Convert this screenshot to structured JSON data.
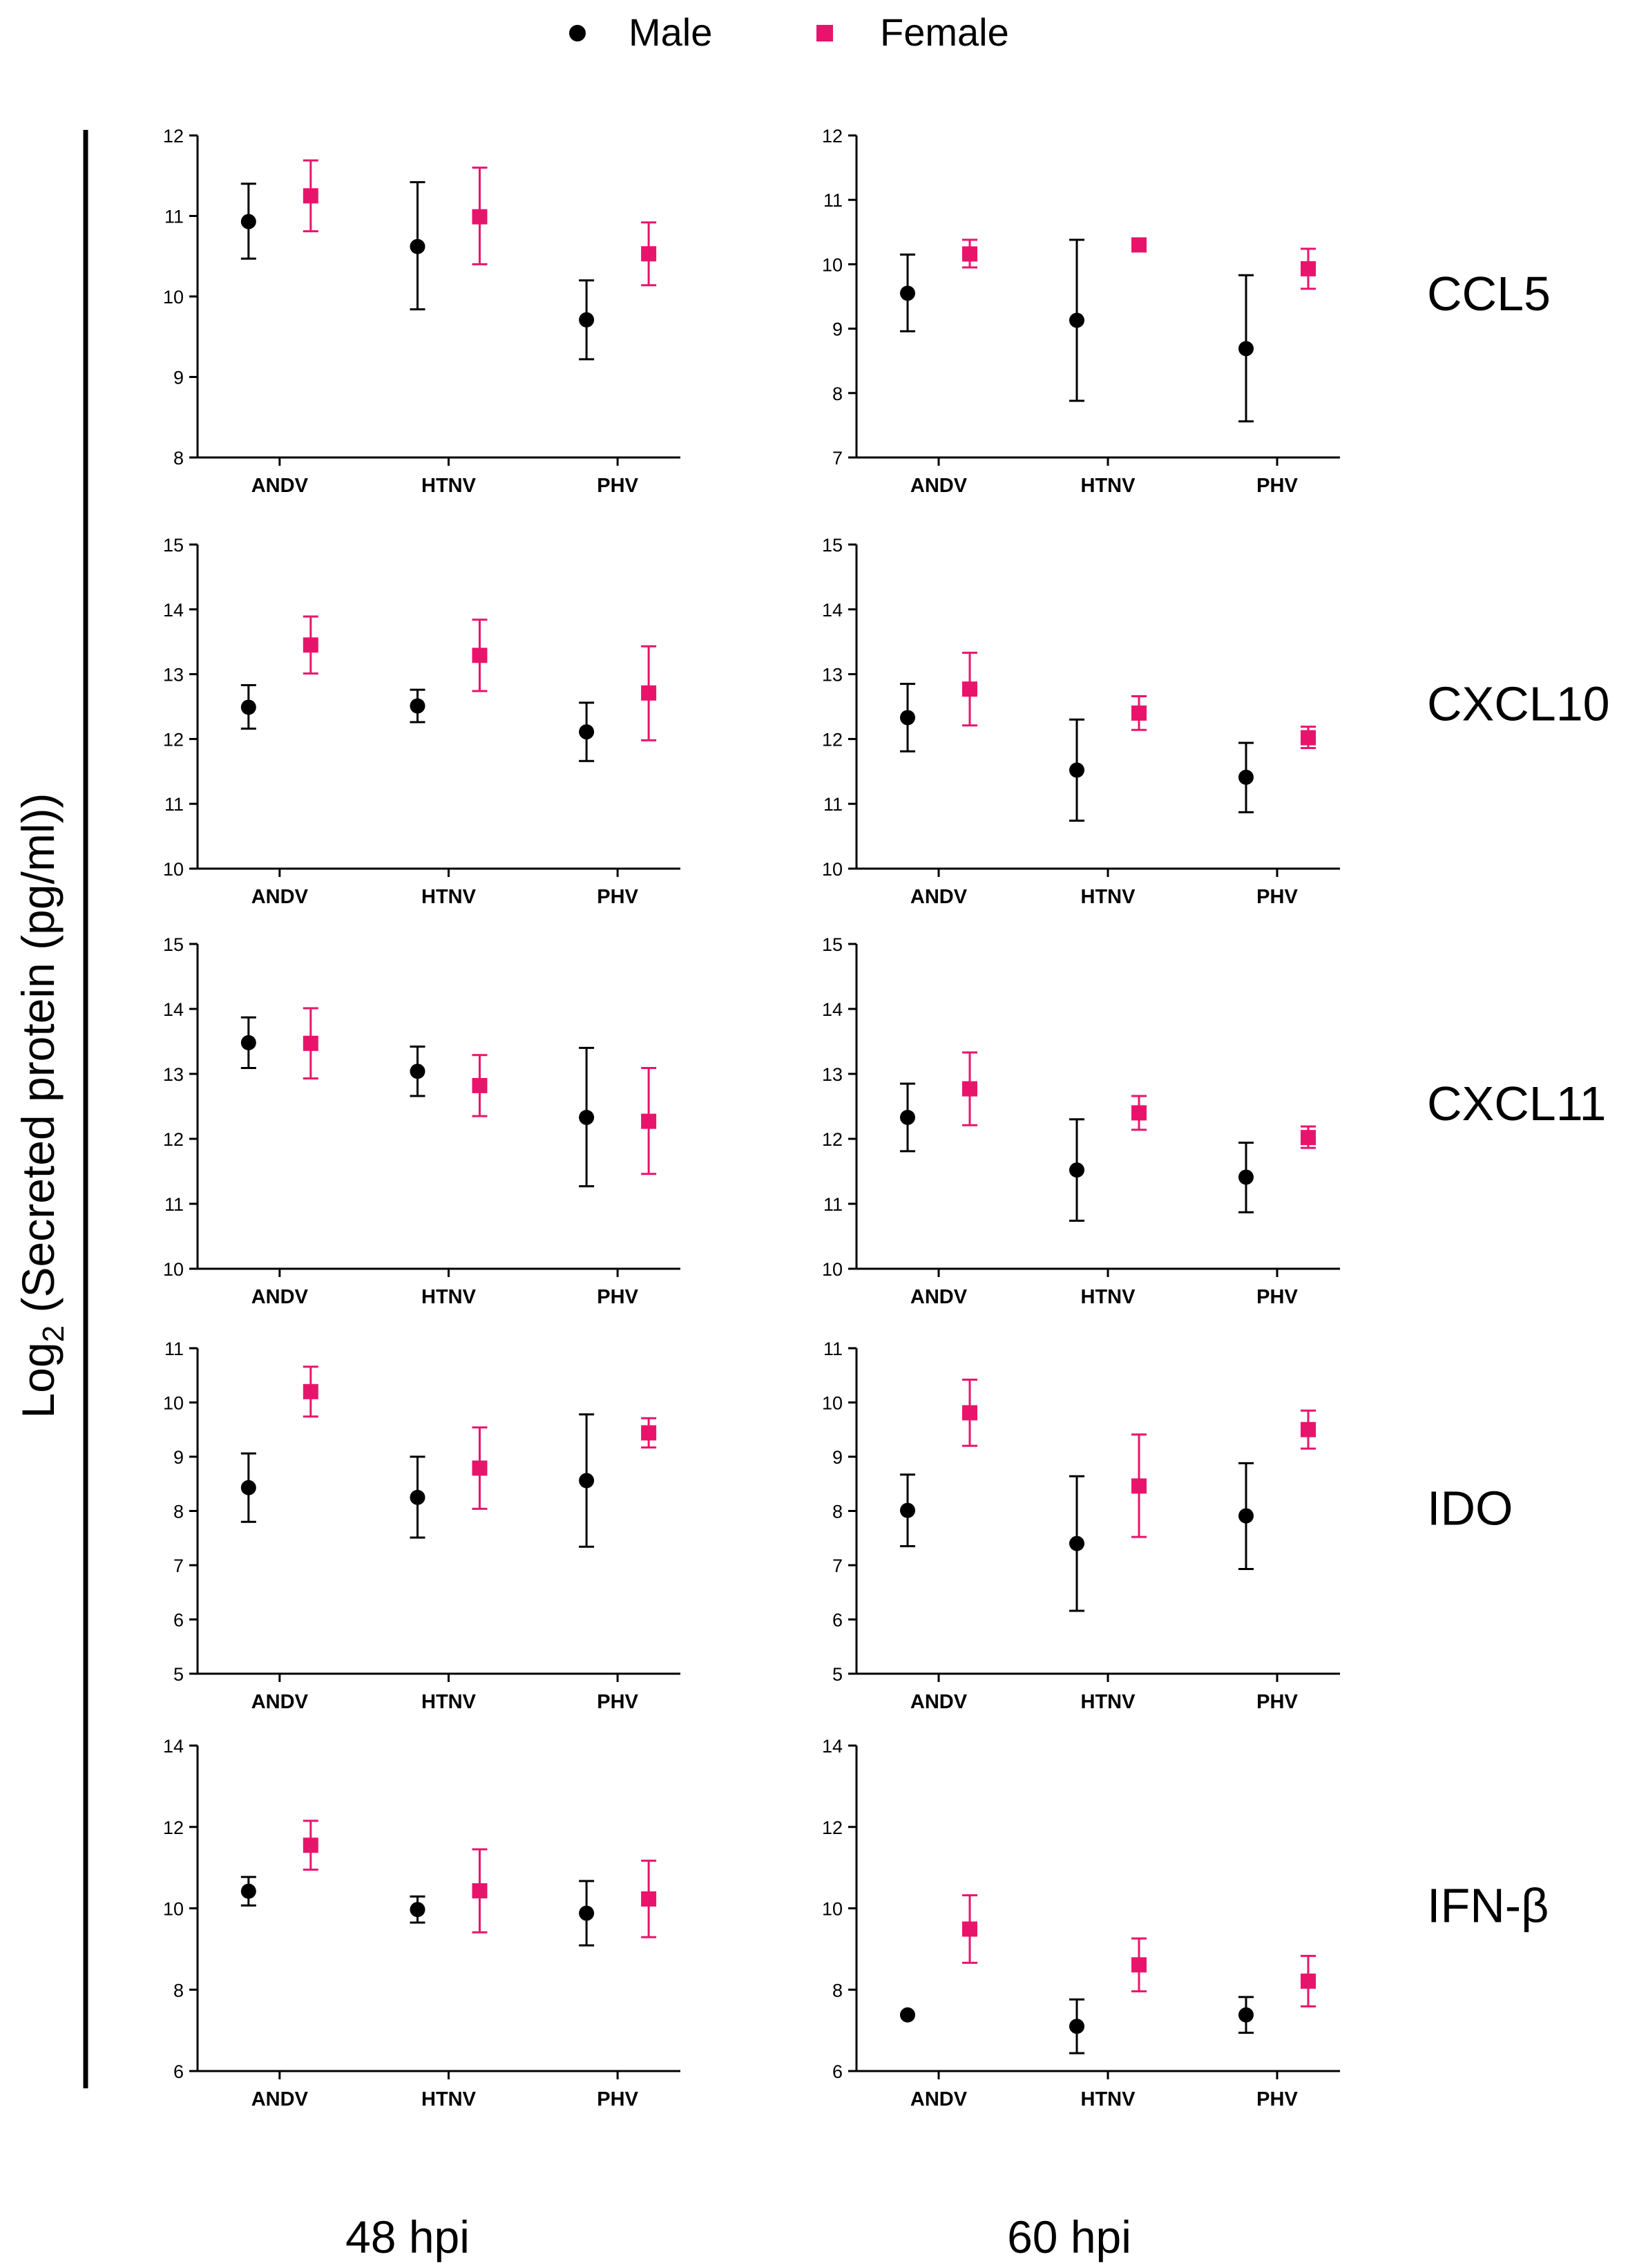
{
  "legend": [
    {
      "name": "Male",
      "color": "#000000",
      "marker": "circle"
    },
    {
      "name": "Female",
      "color": "#e8146c",
      "marker": "square"
    }
  ],
  "ylabel": {
    "prefix": "Log",
    "subscript": "2",
    "rest": " (Secreted protein (pg/ml))"
  },
  "columns": [
    "48 hpi",
    "60 hpi"
  ],
  "chart_data": [
    {
      "type": "scatter",
      "target": "CCL5",
      "timepoint": "48 hpi",
      "categories": [
        "ANDV",
        "HTNV",
        "PHV"
      ],
      "ylim": [
        8,
        12
      ],
      "yticks": [
        8,
        9,
        10,
        11,
        12
      ],
      "series": [
        {
          "name": "Male",
          "values": [
            10.93,
            10.62,
            9.71
          ],
          "err_low": [
            10.47,
            9.84,
            9.22
          ],
          "err_high": [
            11.4,
            11.42,
            10.2
          ]
        },
        {
          "name": "Female",
          "values": [
            11.25,
            10.99,
            10.53
          ],
          "err_low": [
            10.81,
            10.4,
            10.14
          ],
          "err_high": [
            11.69,
            11.6,
            10.92
          ]
        }
      ]
    },
    {
      "type": "scatter",
      "target": "CCL5",
      "timepoint": "60 hpi",
      "categories": [
        "ANDV",
        "HTNV",
        "PHV"
      ],
      "ylim": [
        7,
        12
      ],
      "yticks": [
        7,
        8,
        9,
        10,
        11,
        12
      ],
      "series": [
        {
          "name": "Male",
          "values": [
            9.55,
            9.13,
            8.69
          ],
          "err_low": [
            8.96,
            7.88,
            7.56
          ],
          "err_high": [
            10.15,
            10.38,
            9.83
          ]
        },
        {
          "name": "Female",
          "values": [
            10.16,
            10.3,
            9.93
          ],
          "err_low": [
            9.95,
            10.3,
            9.62
          ],
          "err_high": [
            10.38,
            10.3,
            10.24
          ]
        }
      ]
    },
    {
      "type": "scatter",
      "target": "CXCL10",
      "timepoint": "48 hpi",
      "categories": [
        "ANDV",
        "HTNV",
        "PHV"
      ],
      "ylim": [
        10,
        15
      ],
      "yticks": [
        10,
        11,
        12,
        13,
        14,
        15
      ],
      "series": [
        {
          "name": "Male",
          "values": [
            12.49,
            12.51,
            12.11
          ],
          "err_low": [
            12.16,
            12.26,
            11.66
          ],
          "err_high": [
            12.83,
            12.76,
            12.56
          ]
        },
        {
          "name": "Female",
          "values": [
            13.45,
            13.29,
            12.71
          ],
          "err_low": [
            13.01,
            12.74,
            11.98
          ],
          "err_high": [
            13.89,
            13.84,
            13.43
          ]
        }
      ]
    },
    {
      "type": "scatter",
      "target": "CXCL10",
      "timepoint": "60 hpi",
      "categories": [
        "ANDV",
        "HTNV",
        "PHV"
      ],
      "ylim": [
        10,
        15
      ],
      "yticks": [
        10,
        11,
        12,
        13,
        14,
        15
      ],
      "series": [
        {
          "name": "Male",
          "values": [
            12.33,
            11.52,
            11.41
          ],
          "err_low": [
            11.81,
            10.74,
            10.87
          ],
          "err_high": [
            12.85,
            12.3,
            11.94
          ]
        },
        {
          "name": "Female",
          "values": [
            12.77,
            12.4,
            12.02
          ],
          "err_low": [
            12.21,
            12.14,
            11.86
          ],
          "err_high": [
            13.33,
            12.66,
            12.19
          ]
        }
      ]
    },
    {
      "type": "scatter",
      "target": "CXCL11",
      "timepoint": "48 hpi",
      "categories": [
        "ANDV",
        "HTNV",
        "PHV"
      ],
      "ylim": [
        10,
        15
      ],
      "yticks": [
        10,
        11,
        12,
        13,
        14,
        15
      ],
      "series": [
        {
          "name": "Male",
          "values": [
            13.48,
            13.04,
            12.33
          ],
          "err_low": [
            13.09,
            12.66,
            11.27
          ],
          "err_high": [
            13.87,
            13.42,
            13.4
          ]
        },
        {
          "name": "Female",
          "values": [
            13.47,
            12.82,
            12.27
          ],
          "err_low": [
            12.93,
            12.35,
            11.46
          ],
          "err_high": [
            14.01,
            13.29,
            13.09
          ]
        }
      ]
    },
    {
      "type": "scatter",
      "target": "CXCL11",
      "timepoint": "60 hpi",
      "categories": [
        "ANDV",
        "HTNV",
        "PHV"
      ],
      "ylim": [
        10,
        15
      ],
      "yticks": [
        10,
        11,
        12,
        13,
        14,
        15
      ],
      "series": [
        {
          "name": "Male",
          "values": [
            12.33,
            11.52,
            11.41
          ],
          "err_low": [
            11.81,
            10.74,
            10.87
          ],
          "err_high": [
            12.85,
            12.3,
            11.94
          ]
        },
        {
          "name": "Female",
          "values": [
            12.77,
            12.4,
            12.02
          ],
          "err_low": [
            12.21,
            12.14,
            11.86
          ],
          "err_high": [
            13.33,
            12.66,
            12.19
          ]
        }
      ]
    },
    {
      "type": "scatter",
      "target": "IDO",
      "timepoint": "48 hpi",
      "categories": [
        "ANDV",
        "HTNV",
        "PHV"
      ],
      "ylim": [
        5,
        11
      ],
      "yticks": [
        5,
        6,
        7,
        8,
        9,
        10,
        11
      ],
      "series": [
        {
          "name": "Male",
          "values": [
            8.43,
            8.25,
            8.56
          ],
          "err_low": [
            7.8,
            7.51,
            7.34
          ],
          "err_high": [
            9.06,
            9.0,
            9.78
          ]
        },
        {
          "name": "Female",
          "values": [
            10.2,
            8.79,
            9.44
          ],
          "err_low": [
            9.74,
            8.04,
            9.17
          ],
          "err_high": [
            10.66,
            9.54,
            9.71
          ]
        }
      ]
    },
    {
      "type": "scatter",
      "target": "IDO",
      "timepoint": "60 hpi",
      "categories": [
        "ANDV",
        "HTNV",
        "PHV"
      ],
      "ylim": [
        5,
        11
      ],
      "yticks": [
        5,
        6,
        7,
        8,
        9,
        10,
        11
      ],
      "series": [
        {
          "name": "Male",
          "values": [
            8.01,
            7.4,
            7.91
          ],
          "err_low": [
            7.35,
            6.16,
            6.93
          ],
          "err_high": [
            8.67,
            8.64,
            8.88
          ]
        },
        {
          "name": "Female",
          "values": [
            9.81,
            8.46,
            9.5
          ],
          "err_low": [
            9.2,
            7.52,
            9.15
          ],
          "err_high": [
            10.42,
            9.41,
            9.85
          ]
        }
      ]
    },
    {
      "type": "scatter",
      "target": "IFN-β",
      "timepoint": "48 hpi",
      "categories": [
        "ANDV",
        "HTNV",
        "PHV"
      ],
      "ylim": [
        6,
        14
      ],
      "yticks": [
        6,
        8,
        10,
        12,
        14
      ],
      "series": [
        {
          "name": "Male",
          "values": [
            10.42,
            9.97,
            9.88
          ],
          "err_low": [
            10.07,
            9.65,
            9.09
          ],
          "err_high": [
            10.77,
            10.29,
            10.67
          ]
        },
        {
          "name": "Female",
          "values": [
            11.55,
            10.43,
            10.23
          ],
          "err_low": [
            10.95,
            9.41,
            9.29
          ],
          "err_high": [
            12.15,
            11.45,
            11.17
          ]
        }
      ]
    },
    {
      "type": "scatter",
      "target": "IFN-β",
      "timepoint": "60 hpi",
      "categories": [
        "ANDV",
        "HTNV",
        "PHV"
      ],
      "ylim": [
        6,
        14
      ],
      "yticks": [
        6,
        8,
        10,
        12,
        14
      ],
      "series": [
        {
          "name": "Male",
          "values": [
            7.38,
            7.1,
            7.38
          ],
          "err_low": [
            7.38,
            6.44,
            6.94
          ],
          "err_high": [
            7.38,
            7.76,
            7.82
          ]
        },
        {
          "name": "Female",
          "values": [
            9.49,
            8.61,
            8.21
          ],
          "err_low": [
            8.66,
            7.96,
            7.59
          ],
          "err_high": [
            10.32,
            9.26,
            8.83
          ]
        }
      ]
    }
  ]
}
